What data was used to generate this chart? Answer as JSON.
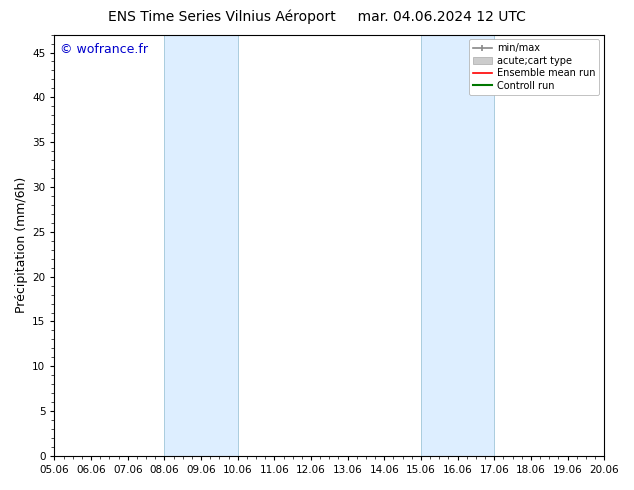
{
  "title_left": "ENS Time Series Vilnius Aéroport",
  "title_right": "mar. 04.06.2024 12 UTC",
  "ylabel": "Précipitation (mm/6h)",
  "watermark": "© wofrance.fr",
  "watermark_color": "#0000cc",
  "ylim": [
    0,
    47
  ],
  "yticks": [
    0,
    5,
    10,
    15,
    20,
    25,
    30,
    35,
    40,
    45
  ],
  "xtick_labels": [
    "05.06",
    "06.06",
    "07.06",
    "08.06",
    "09.06",
    "10.06",
    "11.06",
    "12.06",
    "13.06",
    "14.06",
    "15.06",
    "16.06",
    "17.06",
    "18.06",
    "19.06",
    "20.06"
  ],
  "xtick_values": [
    0,
    1,
    2,
    3,
    4,
    5,
    6,
    7,
    8,
    9,
    10,
    11,
    12,
    13,
    14,
    15
  ],
  "shaded_bands": [
    {
      "xmin": 3,
      "xmax": 5,
      "color": "#ddeeff"
    },
    {
      "xmin": 10,
      "xmax": 12,
      "color": "#ddeeff"
    }
  ],
  "shaded_band_edge_color": "#aaccdd",
  "bg_color": "#ffffff",
  "plot_bg_color": "#ffffff",
  "grid_color": "#e0e0e0",
  "spine_color": "#000000",
  "tick_color": "#000000",
  "title_fontsize": 10,
  "label_fontsize": 9,
  "tick_fontsize": 7.5,
  "watermark_fontsize": 9,
  "legend_fontsize": 7
}
